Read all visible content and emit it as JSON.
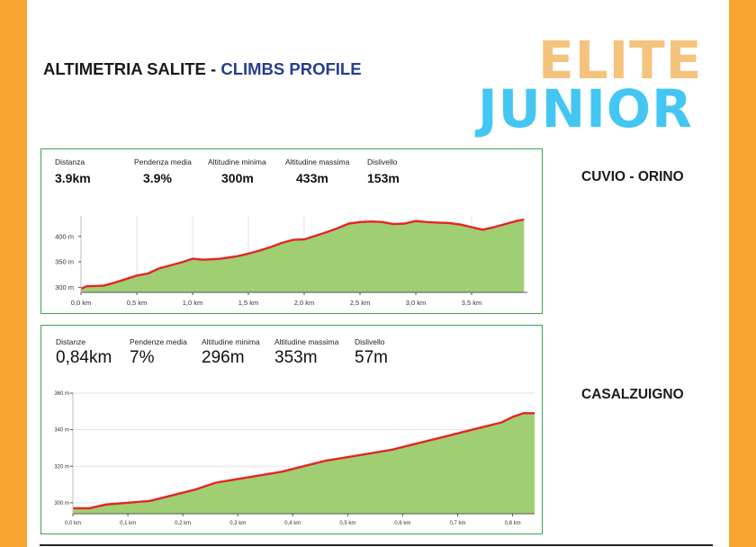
{
  "header": {
    "title_it": "ALTIMETRIA SALITE",
    "title_sep": " - ",
    "title_en": "CLIMBS PROFILE",
    "category_top": "ELITE",
    "category_bottom": "JUNIOR"
  },
  "colors": {
    "side_bar": "#f9a533",
    "title_accent": "#253f8e",
    "elite": "#f4c37e",
    "junior": "#43c7f2",
    "panel_border": "#3aa64b",
    "profile_fill": "#9fcf72",
    "profile_line": "#e32526"
  },
  "climbs": [
    {
      "name": "CUVIO - ORINO",
      "stats": [
        {
          "label": "Distanza",
          "value": "3.9km"
        },
        {
          "label": "Pendenza media",
          "value": "3.9%"
        },
        {
          "label": "Altitudine minima",
          "value": "300m"
        },
        {
          "label": "Altitudine massima",
          "value": "433m"
        },
        {
          "label": "Dislivello",
          "value": "153m"
        }
      ]
    },
    {
      "name": "CASALZUIGNO",
      "stats": [
        {
          "label": "Distanze",
          "value": "0,84km"
        },
        {
          "label": "Pendenze media",
          "value": "7%"
        },
        {
          "label": "Altitudine minima",
          "value": "296m"
        },
        {
          "label": "Altitudine massima",
          "value": "353m"
        },
        {
          "label": "Dislivello",
          "value": "57m"
        }
      ]
    }
  ],
  "chart_data": [
    {
      "type": "area",
      "xlim": [
        0,
        4.0
      ],
      "ylim": [
        290,
        440
      ],
      "x_ticks": [
        0,
        0.5,
        1.0,
        1.5,
        2.0,
        2.5,
        3.0,
        3.5
      ],
      "x_tick_labels": [
        "0,0 km",
        "0,5 km",
        "1,0 km",
        "1,5 km",
        "2,0 km",
        "2,5 km",
        "3,0 km",
        "3,5 km"
      ],
      "y_ticks": [
        300,
        350,
        400
      ],
      "y_tick_labels": [
        "300 m",
        "350 m",
        "400 m"
      ],
      "grid": "vertical",
      "series": [
        {
          "x": [
            0,
            0.05,
            0.2,
            0.3,
            0.4,
            0.5,
            0.6,
            0.7,
            0.8,
            0.9,
            1.0,
            1.1,
            1.25,
            1.4,
            1.5,
            1.6,
            1.7,
            1.8,
            1.9,
            2.0,
            2.1,
            2.2,
            2.3,
            2.4,
            2.5,
            2.6,
            2.7,
            2.8,
            2.9,
            3.0,
            3.1,
            3.2,
            3.3,
            3.4,
            3.5,
            3.6,
            3.7,
            3.8,
            3.9,
            3.97
          ],
          "y": [
            297,
            302,
            303,
            309,
            316,
            323,
            327,
            337,
            343,
            349,
            356,
            354,
            356,
            361,
            366,
            372,
            379,
            387,
            393,
            394,
            401,
            408,
            416,
            425,
            428,
            429,
            428,
            424,
            425,
            430,
            428,
            427,
            426,
            423,
            418,
            413,
            418,
            424,
            430,
            433
          ]
        }
      ]
    },
    {
      "type": "area",
      "xlim": [
        0,
        0.84
      ],
      "ylim": [
        294,
        360
      ],
      "x_ticks": [
        0,
        0.1,
        0.2,
        0.3,
        0.4,
        0.5,
        0.6,
        0.7,
        0.8
      ],
      "x_tick_labels": [
        "0,0 km",
        "0,1 km",
        "0,2 km",
        "0,3 km",
        "0,4 km",
        "0,5 km",
        "0,6 km",
        "0,7 km",
        "0,8 km"
      ],
      "y_ticks": [
        300,
        320,
        340,
        360
      ],
      "y_tick_labels": [
        "300 m",
        "320 m",
        "340 m",
        "360 m"
      ],
      "grid": "horizontal",
      "series": [
        {
          "x": [
            0,
            0.03,
            0.06,
            0.1,
            0.14,
            0.18,
            0.22,
            0.26,
            0.3,
            0.34,
            0.38,
            0.42,
            0.46,
            0.5,
            0.54,
            0.58,
            0.62,
            0.66,
            0.7,
            0.74,
            0.78,
            0.8,
            0.82,
            0.84
          ],
          "y": [
            297,
            297,
            299,
            300,
            301,
            304,
            307,
            311,
            313,
            315,
            317,
            320,
            323,
            325,
            327,
            329,
            332,
            335,
            338,
            341,
            344,
            347,
            349,
            349
          ]
        }
      ]
    }
  ]
}
